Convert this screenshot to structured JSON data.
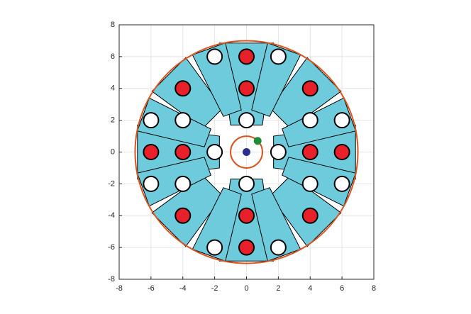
{
  "chart_data": {
    "type": "scatter",
    "xlim": [
      -8,
      8
    ],
    "ylim": [
      -8,
      8
    ],
    "xticks": [
      -8,
      -6,
      -4,
      -2,
      0,
      2,
      4,
      6,
      8
    ],
    "yticks": [
      -8,
      -6,
      -4,
      -2,
      0,
      2,
      4,
      6,
      8
    ],
    "grid": true,
    "circles": [
      {
        "cx": 0,
        "cy": 0,
        "r": 7,
        "color": "#d9541e"
      },
      {
        "cx": 0,
        "cy": 0,
        "r": 1,
        "color": "#d9541e"
      }
    ],
    "series": [
      {
        "color": "#ffffff",
        "x": [
          2,
          -2,
          2,
          -2,
          6,
          -6,
          6,
          -6,
          4,
          -4,
          4,
          -4,
          0,
          0,
          2,
          -2
        ],
        "y": [
          6,
          6,
          -6,
          -6,
          2,
          2,
          -2,
          -2,
          2,
          2,
          -2,
          -2,
          2,
          -2,
          0,
          0
        ]
      },
      {
        "color": "#e8202a",
        "x": [
          0,
          0,
          0,
          0,
          4,
          6,
          -4,
          -6,
          4,
          -4,
          4,
          -4
        ],
        "y": [
          4,
          6,
          -4,
          -6,
          0,
          0,
          0,
          0,
          4,
          4,
          -4,
          -4
        ]
      },
      {
        "color": "#2b2f8f",
        "x": [
          0
        ],
        "y": [
          0
        ]
      },
      {
        "color": "#1f8a3c",
        "x": [
          0.7
        ],
        "y": [
          0.7
        ]
      }
    ]
  }
}
